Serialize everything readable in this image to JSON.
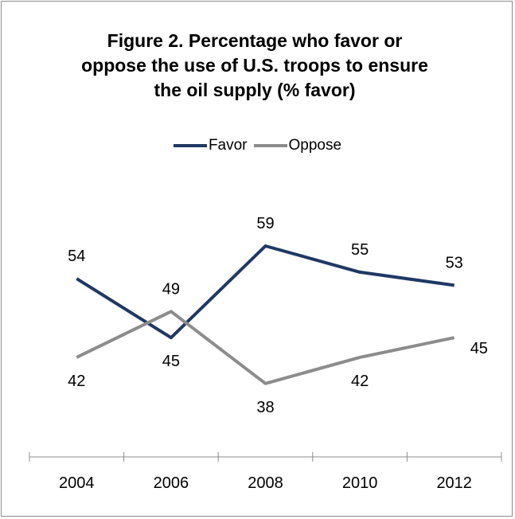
{
  "chart_data": {
    "type": "line",
    "title": "Figure 2. Percentage who favor or oppose the use of U.S. troops to ensure the oil supply (% favor)",
    "title_lines": [
      "Figure 2. Percentage who favor or",
      "oppose the use of U.S. troops to ensure",
      "the oil supply (% favor)"
    ],
    "categories": [
      "2004",
      "2006",
      "2008",
      "2010",
      "2012"
    ],
    "series": [
      {
        "name": "Favor",
        "values": [
          54,
          45,
          59,
          55,
          53
        ],
        "color": "#1f3864",
        "label_pos": [
          "above",
          "below",
          "above",
          "above",
          "above"
        ]
      },
      {
        "name": "Oppose",
        "values": [
          42,
          49,
          38,
          42,
          45
        ],
        "color": "#8c8c8c",
        "label_pos": [
          "below",
          "above",
          "below",
          "below",
          "right"
        ]
      }
    ],
    "legend_position": "top",
    "grid": false,
    "y_axis_visible": false,
    "ylim": [
      30,
      70
    ]
  }
}
